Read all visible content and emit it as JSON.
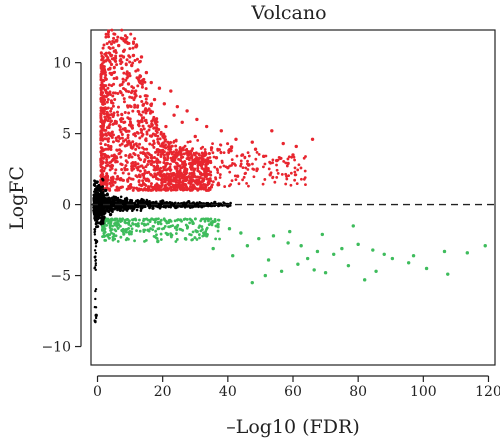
{
  "chart_data": {
    "type": "scatter",
    "title": "Volcano",
    "xlabel": "–Log10 (FDR)",
    "ylabel": "LogFC",
    "xlim": [
      -2,
      122
    ],
    "ylim": [
      -11.3,
      12.3
    ],
    "x_ticks": [
      0,
      20,
      40,
      60,
      80,
      100,
      120
    ],
    "x_tick_labels": [
      "0",
      "20",
      "40",
      "60",
      "80",
      "100",
      "120"
    ],
    "y_ticks": [
      10,
      5,
      0,
      -5,
      -10
    ],
    "y_tick_labels": [
      "10",
      "5",
      "0",
      "−5",
      "−10"
    ],
    "grid": false,
    "reference_line": {
      "y": 0,
      "style": "dashed"
    },
    "colors": {
      "up": "#e8262f",
      "down": "#3ebc5c",
      "neutral": "#000000"
    },
    "series": [
      {
        "group": "up",
        "color": "#e8262f",
        "points": [
          [
            6.5,
            11.2
          ],
          [
            8.0,
            10.8
          ],
          [
            11.0,
            10.5
          ],
          [
            13.5,
            10.4
          ],
          [
            10.5,
            9.8
          ],
          [
            15.0,
            9.3
          ],
          [
            12.5,
            8.9
          ],
          [
            16.5,
            8.6
          ],
          [
            9.5,
            8.5
          ],
          [
            19.0,
            8.2
          ],
          [
            22.5,
            8.0
          ],
          [
            17.5,
            7.4
          ],
          [
            20.5,
            7.1
          ],
          [
            24.5,
            6.9
          ],
          [
            27.5,
            6.6
          ],
          [
            23.5,
            6.3
          ],
          [
            30.5,
            6.0
          ],
          [
            26.0,
            5.8
          ],
          [
            33.5,
            5.5
          ],
          [
            38.0,
            5.2
          ],
          [
            53.5,
            5.2
          ],
          [
            66.0,
            4.6
          ],
          [
            42.5,
            4.6
          ],
          [
            57.0,
            4.3
          ],
          [
            61.0,
            4.1
          ],
          [
            48.5,
            3.9
          ],
          [
            44.5,
            3.5
          ],
          [
            51.0,
            3.4
          ],
          [
            36.5,
            3.3
          ],
          [
            55.0,
            3.1
          ],
          [
            58.5,
            2.9
          ],
          [
            46.5,
            2.8
          ],
          [
            40.0,
            2.6
          ],
          [
            34.0,
            2.4
          ],
          [
            29.0,
            2.2
          ],
          [
            53.0,
            2.1
          ],
          [
            31.5,
            1.9
          ],
          [
            27.0,
            1.7
          ],
          [
            25.0,
            1.5
          ],
          [
            22.0,
            1.4
          ],
          [
            19.5,
            1.3
          ],
          [
            17.0,
            1.2
          ],
          [
            14.5,
            1.1
          ],
          [
            37.0,
            1.4
          ],
          [
            43.0,
            2.0
          ],
          [
            49.0,
            2.5
          ],
          [
            60.0,
            3.5
          ],
          [
            35.0,
            4.0
          ],
          [
            41.0,
            3.8
          ],
          [
            47.5,
            4.4
          ],
          [
            30.0,
            4.8
          ],
          [
            28.5,
            3.6
          ],
          [
            21.0,
            5.5
          ],
          [
            18.0,
            6.0
          ],
          [
            14.0,
            7.0
          ],
          [
            11.5,
            7.8
          ],
          [
            9.0,
            9.2
          ],
          [
            7.5,
            9.6
          ],
          [
            13.0,
            9.0
          ],
          [
            32.0,
            3.0
          ]
        ]
      },
      {
        "group": "down",
        "color": "#3ebc5c",
        "points": [
          [
            40.5,
            -1.7
          ],
          [
            44.0,
            -2.0
          ],
          [
            49.5,
            -2.4
          ],
          [
            54.0,
            -2.2
          ],
          [
            58.5,
            -2.7
          ],
          [
            62.5,
            -2.9
          ],
          [
            67.5,
            -3.3
          ],
          [
            72.5,
            -3.5
          ],
          [
            66.5,
            -4.6
          ],
          [
            75.0,
            -3.1
          ],
          [
            80.0,
            -2.8
          ],
          [
            84.5,
            -3.2
          ],
          [
            88.0,
            -3.5
          ],
          [
            95.5,
            -4.1
          ],
          [
            101.0,
            -4.5
          ],
          [
            106.5,
            -3.3
          ],
          [
            107.5,
            -4.9
          ],
          [
            113.5,
            -3.4
          ],
          [
            119.0,
            -2.9
          ],
          [
            47.5,
            -5.5
          ],
          [
            51.5,
            -5.0
          ],
          [
            56.5,
            -4.7
          ],
          [
            61.5,
            -4.2
          ],
          [
            64.5,
            -3.8
          ],
          [
            70.0,
            -4.8
          ],
          [
            77.0,
            -4.3
          ],
          [
            82.0,
            -5.3
          ],
          [
            85.5,
            -4.7
          ],
          [
            90.5,
            -3.8
          ],
          [
            97.0,
            -3.6
          ],
          [
            37.0,
            -1.4
          ],
          [
            33.5,
            -2.2
          ],
          [
            30.5,
            -1.9
          ],
          [
            27.0,
            -2.4
          ],
          [
            24.0,
            -1.6
          ],
          [
            21.5,
            -2.1
          ],
          [
            18.5,
            -2.6
          ],
          [
            15.5,
            -1.8
          ],
          [
            12.5,
            -1.5
          ],
          [
            9.5,
            -1.3
          ],
          [
            35.5,
            -3.1
          ],
          [
            41.5,
            -3.6
          ],
          [
            46.0,
            -2.9
          ],
          [
            52.5,
            -3.9
          ],
          [
            59.0,
            -1.9
          ],
          [
            69.0,
            -2.1
          ],
          [
            78.5,
            -1.5
          ]
        ]
      },
      {
        "group": "neutral",
        "color": "#000000",
        "points": [
          [
            0.0,
            0.4
          ],
          [
            0.4,
            -0.6
          ],
          [
            1.2,
            0.8
          ],
          [
            2.0,
            -0.9
          ],
          [
            3.0,
            0.7
          ],
          [
            4.0,
            -0.7
          ],
          [
            5.5,
            0.5
          ],
          [
            7.0,
            -0.4
          ],
          [
            9.0,
            0.35
          ],
          [
            11.0,
            -0.3
          ],
          [
            14.0,
            0.3
          ],
          [
            17.0,
            -0.25
          ],
          [
            20.0,
            0.25
          ],
          [
            24.0,
            -0.2
          ],
          [
            28.0,
            0.2
          ],
          [
            32.0,
            -0.15
          ],
          [
            36.0,
            0.15
          ],
          [
            40.0,
            -0.1
          ],
          [
            -0.4,
            -7.8
          ],
          [
            -0.5,
            1.6
          ],
          [
            -0.3,
            -2.6
          ],
          [
            0.6,
            1.1
          ],
          [
            1.6,
            -1.2
          ],
          [
            2.5,
            1.0
          ]
        ]
      }
    ]
  }
}
